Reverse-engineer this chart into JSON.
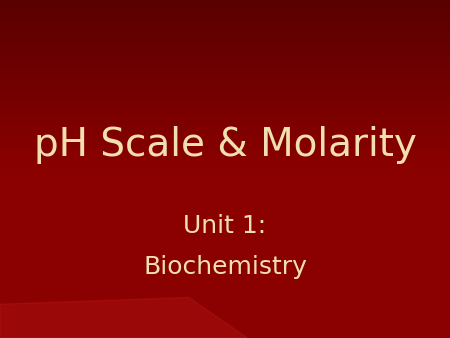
{
  "title": "pH Scale & Molarity",
  "subtitle_line1": "Unit 1:",
  "subtitle_line2": "Biochemistry",
  "background_color": "#8B0000",
  "title_color": "#F0E0B0",
  "subtitle_color": "#F0E0B0",
  "title_fontsize": 28,
  "subtitle_fontsize": 18,
  "figsize": [
    4.5,
    3.38
  ],
  "dpi": 100
}
